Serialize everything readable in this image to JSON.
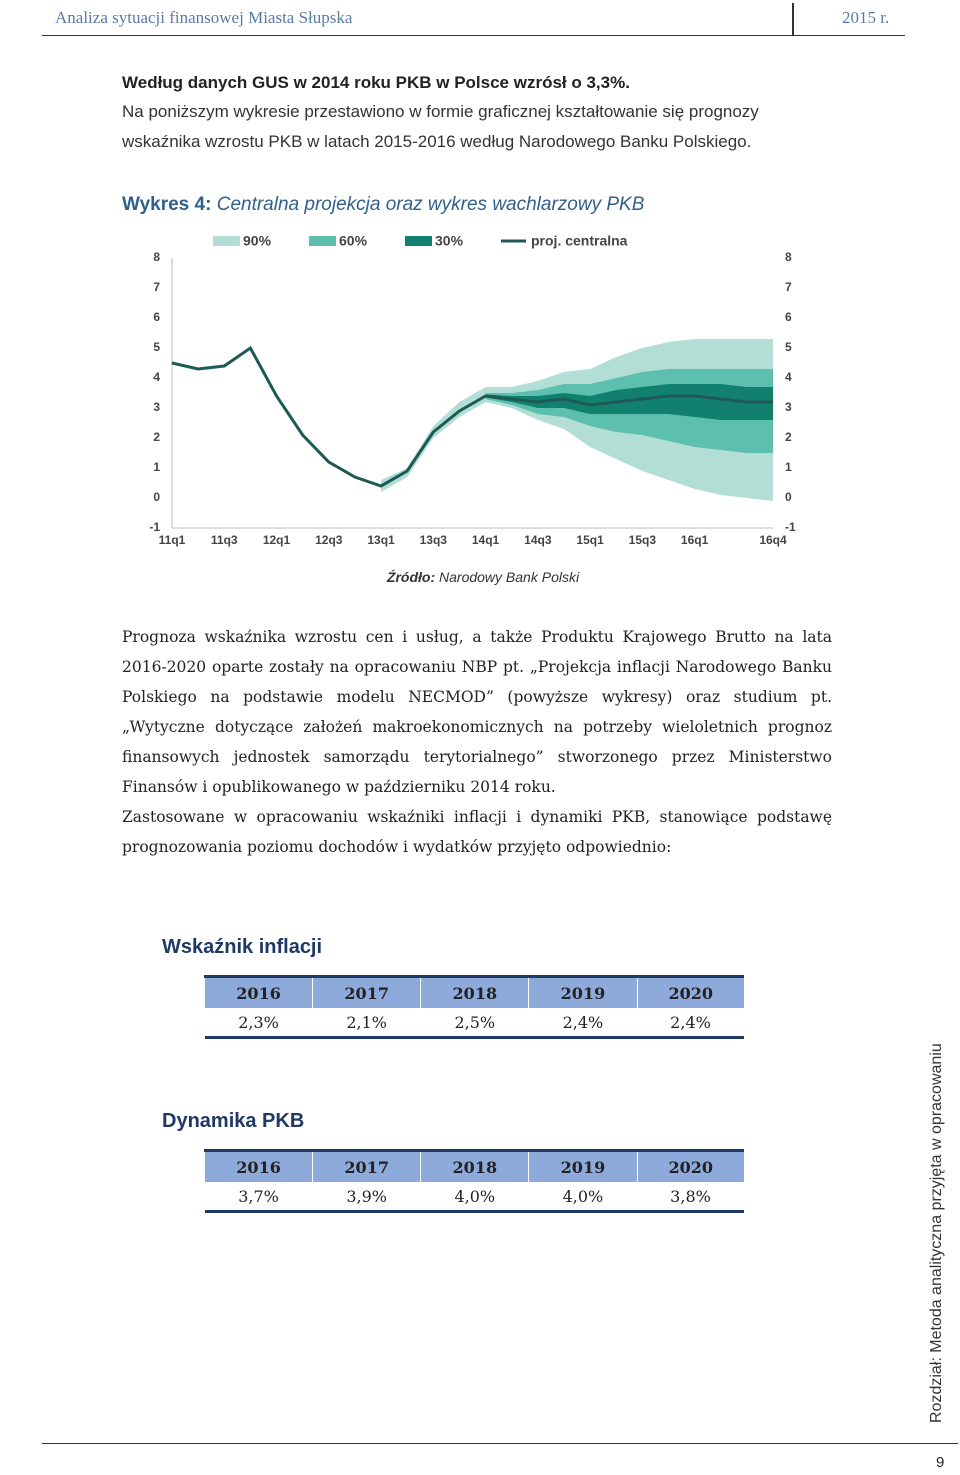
{
  "header": {
    "title": "Analiza sytuacji finansowej Miasta Słupska",
    "year": "2015 r."
  },
  "intro": {
    "bold": "Według danych GUS w 2014 roku PKB w Polsce wzrósł o 3,3%.",
    "text": "Na poniższym wykresie przestawiono w formie graficznej kształtowanie się prognozy wskaźnika wzrostu PKB w latach 2015-2016 według Narodowego Banku Polskiego."
  },
  "figure": {
    "label": "Wykres 4:",
    "caption": "Centralna projekcja oraz wykres wachlarzowy PKB",
    "chart": {
      "type": "fan",
      "categories": [
        "11q1",
        null,
        "11q3",
        null,
        "12q1",
        null,
        "12q3",
        null,
        "13q1",
        null,
        "13q3",
        null,
        "14q1",
        null,
        "14q3",
        null,
        "15q1",
        null,
        "15q3",
        null,
        "16q1",
        null,
        null,
        "16q4"
      ],
      "ylim": [
        -1,
        8
      ],
      "yticks": [
        -1,
        0,
        1,
        2,
        3,
        4,
        5,
        6,
        7,
        8
      ],
      "grid": false,
      "series": [
        {
          "name": "90%",
          "color": "#b3ded5",
          "upper": [
            null,
            null,
            null,
            null,
            null,
            null,
            null,
            null,
            0.6,
            1.0,
            2.4,
            3.2,
            3.7,
            3.7,
            3.9,
            4.2,
            4.3,
            4.7,
            5.0,
            5.2,
            5.3,
            5.3,
            5.3,
            5.3
          ],
          "lower": [
            null,
            null,
            null,
            null,
            null,
            null,
            null,
            null,
            0.2,
            0.7,
            2.0,
            2.7,
            3.2,
            3.0,
            2.6,
            2.3,
            1.7,
            1.3,
            0.9,
            0.6,
            0.3,
            0.1,
            0.0,
            -0.1
          ]
        },
        {
          "name": "60%",
          "color": "#5dbfae",
          "upper": [
            null,
            null,
            null,
            null,
            null,
            null,
            null,
            null,
            null,
            null,
            null,
            null,
            3.5,
            3.5,
            3.6,
            3.8,
            3.8,
            4.0,
            4.2,
            4.3,
            4.3,
            4.3,
            4.3,
            4.3
          ],
          "lower": [
            null,
            null,
            null,
            null,
            null,
            null,
            null,
            null,
            null,
            null,
            null,
            null,
            3.3,
            3.1,
            2.8,
            2.7,
            2.4,
            2.2,
            2.1,
            1.9,
            1.7,
            1.6,
            1.5,
            1.5
          ]
        },
        {
          "name": "30%",
          "color": "#12806f",
          "upper": [
            null,
            null,
            null,
            null,
            null,
            null,
            null,
            null,
            null,
            null,
            null,
            null,
            3.45,
            3.4,
            3.4,
            3.5,
            3.4,
            3.6,
            3.7,
            3.8,
            3.8,
            3.8,
            3.7,
            3.7
          ],
          "lower": [
            null,
            null,
            null,
            null,
            null,
            null,
            null,
            null,
            null,
            null,
            null,
            null,
            3.35,
            3.2,
            3.0,
            3.0,
            2.8,
            2.8,
            2.8,
            2.8,
            2.7,
            2.6,
            2.6,
            2.6
          ]
        },
        {
          "name": "proj. centralna",
          "color": "#1d5955",
          "values": [
            4.5,
            4.3,
            4.4,
            5.0,
            3.4,
            2.1,
            1.2,
            0.7,
            0.4,
            0.9,
            2.2,
            2.9,
            3.4,
            3.3,
            3.2,
            3.3,
            3.1,
            3.2,
            3.3,
            3.4,
            3.4,
            3.3,
            3.2,
            3.2
          ]
        }
      ]
    },
    "source_label": "Źródło:",
    "source": "Narodowy Bank Polski"
  },
  "paragraphs": [
    "Prognoza wskaźnika wzrostu cen i usług, a także Produktu Krajowego Brutto na lata 2016-2020 oparte zostały na opracowaniu NBP pt. „Projekcja inflacji Narodowego Banku Polskiego na podstawie modelu NECMOD” (powyższe wykresy) oraz studium pt. „Wytyczne dotyczące założeń makroekonomicznych na potrzeby wieloletnich prognoz finansowych jednostek samorządu terytorialnego” stworzonego przez Ministerstwo Finansów i opublikowanego w październiku 2014 roku.",
    "Zastosowane w opracowaniu wskaźniki inflacji i dynamiki PKB, stanowiące podstawę prognozowania poziomu dochodów i wydatków przyjęto odpowiednio:"
  ],
  "tables": [
    {
      "title": "Wskaźnik inflacji",
      "columns": [
        "2016",
        "2017",
        "2018",
        "2019",
        "2020"
      ],
      "rows": [
        [
          "2,3%",
          "2,1%",
          "2,5%",
          "2,4%",
          "2,4%"
        ]
      ]
    },
    {
      "title": "Dynamika PKB",
      "columns": [
        "2016",
        "2017",
        "2018",
        "2019",
        "2020"
      ],
      "rows": [
        [
          "3,7%",
          "3,9%",
          "4,0%",
          "4,0%",
          "3,8%"
        ]
      ]
    }
  ],
  "sidebar": "Rozdział: Metoda analityczna przyjęta w opracowaniu",
  "page_number": "9"
}
